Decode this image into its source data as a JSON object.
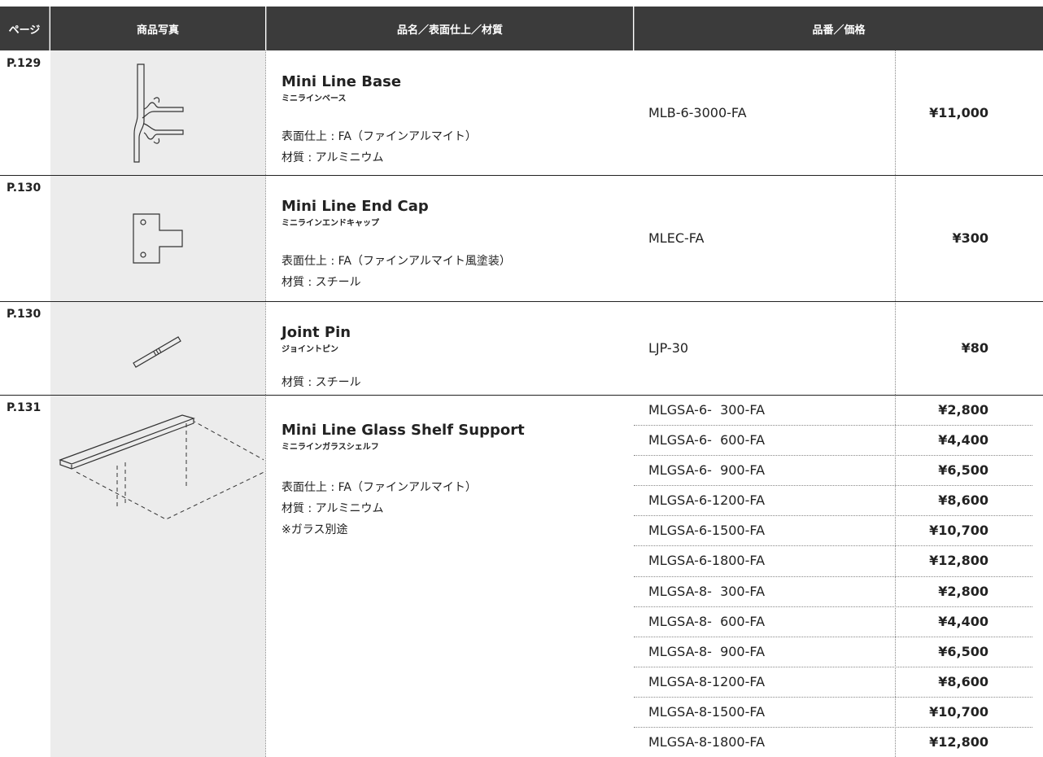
{
  "table": {
    "header": [
      "ページ",
      "商品写真",
      "品名／表面仕上／材質",
      "品番／価格"
    ],
    "rows": [
      {
        "page": "P.129",
        "name": "Mini Line Base",
        "name_ja": "ミニラインベース",
        "details": [
          "表面仕上 : FA（ファインアルマイト）",
          "材質 : アルミニウム"
        ],
        "items": [
          {
            "code": "MLB-6-3000-FA",
            "price": "¥11,000"
          }
        ]
      },
      {
        "page": "P.130",
        "name": "Mini Line End Cap",
        "name_ja": "ミニラインエンドキャップ",
        "details": [
          "表面仕上 : FA（ファインアルマイト風塗装）",
          "材質 : スチール"
        ],
        "items": [
          {
            "code": "MLEC-FA",
            "price": "¥300"
          }
        ]
      },
      {
        "page": "P.130",
        "name": "Joint Pin",
        "name_ja": "ジョイントピン",
        "details": [
          "材質 : スチール"
        ],
        "items": [
          {
            "code": "LJP-30",
            "price": "¥80"
          }
        ]
      },
      {
        "page": "P.131",
        "name": "Mini Line Glass Shelf Support",
        "name_ja": "ミニラインガラスシェルフ",
        "details": [
          "表面仕上 : FA（ファインアルマイト）",
          "材質 : アルミニウム",
          "※ガラス別途"
        ],
        "items": [
          {
            "code": "MLGSA-6-  300-FA",
            "price": "¥2,800"
          },
          {
            "code": "MLGSA-6-  600-FA",
            "price": "¥4,400"
          },
          {
            "code": "MLGSA-6-  900-FA",
            "price": "¥6,500"
          },
          {
            "code": "MLGSA-6-1200-FA",
            "price": "¥8,600"
          },
          {
            "code": "MLGSA-6-1500-FA",
            "price": "¥10,700"
          },
          {
            "code": "MLGSA-6-1800-FA",
            "price": "¥12,800"
          },
          {
            "code": "MLGSA-8-  300-FA",
            "price": "¥2,800"
          },
          {
            "code": "MLGSA-8-  600-FA",
            "price": "¥4,400"
          },
          {
            "code": "MLGSA-8-  900-FA",
            "price": "¥6,500"
          },
          {
            "code": "MLGSA-8-1200-FA",
            "price": "¥8,600"
          },
          {
            "code": "MLGSA-8-1500-FA",
            "price": "¥10,700"
          },
          {
            "code": "MLGSA-8-1800-FA",
            "price": "¥12,800"
          }
        ]
      }
    ]
  }
}
